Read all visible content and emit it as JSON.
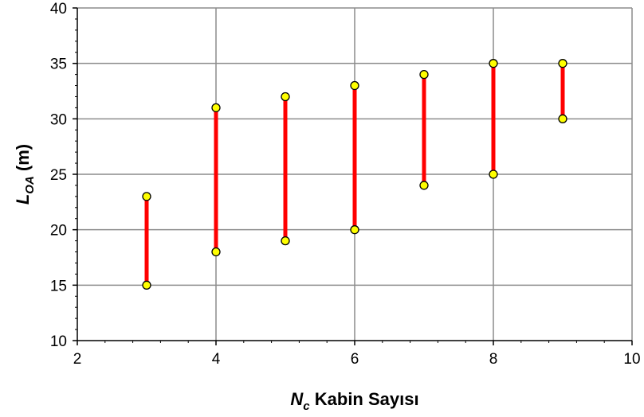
{
  "chart_data": {
    "type": "range",
    "x": [
      3,
      4,
      5,
      6,
      7,
      8,
      9
    ],
    "series": [
      {
        "low": [
          15,
          18,
          19,
          20,
          24,
          25,
          30
        ],
        "high": [
          23,
          31,
          32,
          33,
          34,
          35,
          35
        ]
      }
    ],
    "xlim": [
      2,
      10
    ],
    "ylim": [
      10,
      40
    ],
    "x_ticks": [
      "2",
      "4",
      "6",
      "8",
      "10"
    ],
    "y_ticks": [
      "10",
      "15",
      "20",
      "25",
      "30",
      "35",
      "40"
    ],
    "xlabel": {
      "main": "N",
      "sub": "c",
      "rest": " Kabin Sayısı"
    },
    "ylabel": {
      "main": "L",
      "sub": "OA",
      "rest": " (m)"
    },
    "grid": true,
    "colors": {
      "bar": "#ff0000",
      "marker_fill": "#ffff00",
      "marker_stroke": "#000000",
      "grid": "#8c8c8c"
    }
  }
}
